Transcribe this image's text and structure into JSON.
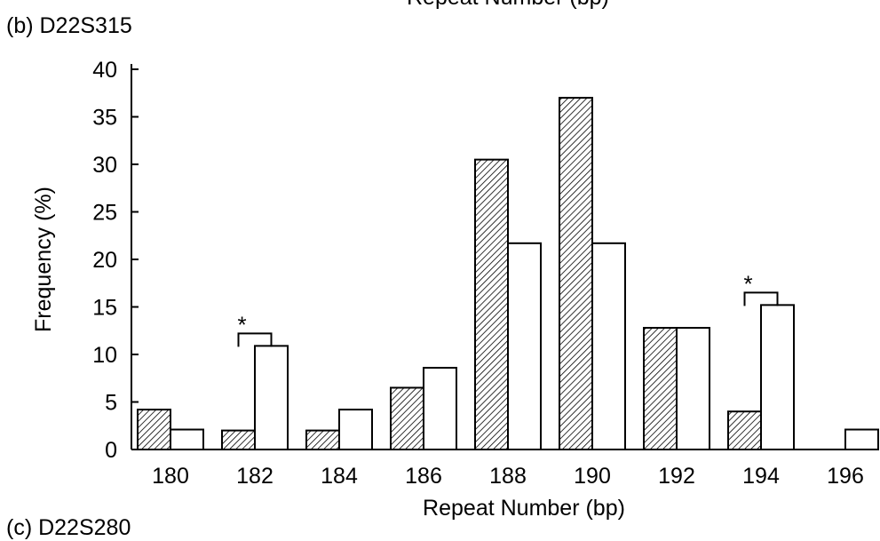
{
  "top_cut_label": "Repeat Number (bp)",
  "panel_label": "(b) D22S315",
  "bottom_cut_label": "(c) D22S280",
  "colors": {
    "hatched_bar_fill": "#000000",
    "open_bar_fill": "#ffffff",
    "stroke": "#000000"
  },
  "chart_data": {
    "type": "bar",
    "title": "",
    "xlabel": "Repeat Number (bp)",
    "ylabel": "Frequency (%)",
    "categories": [
      "180",
      "182",
      "184",
      "186",
      "188",
      "190",
      "192",
      "194",
      "196"
    ],
    "series": [
      {
        "style": "hatched",
        "values": [
          4.2,
          2.0,
          2.0,
          6.5,
          30.5,
          37.0,
          12.8,
          4.0,
          0
        ]
      },
      {
        "style": "open",
        "values": [
          2.1,
          10.9,
          4.2,
          8.6,
          21.7,
          21.7,
          12.8,
          15.2,
          2.1
        ]
      }
    ],
    "ylim": [
      0,
      40
    ],
    "yticks": [
      0,
      5,
      10,
      15,
      20,
      25,
      30,
      35,
      40
    ],
    "significance_markers": [
      {
        "category": "182",
        "label": "*"
      },
      {
        "category": "194",
        "label": "*"
      }
    ]
  }
}
